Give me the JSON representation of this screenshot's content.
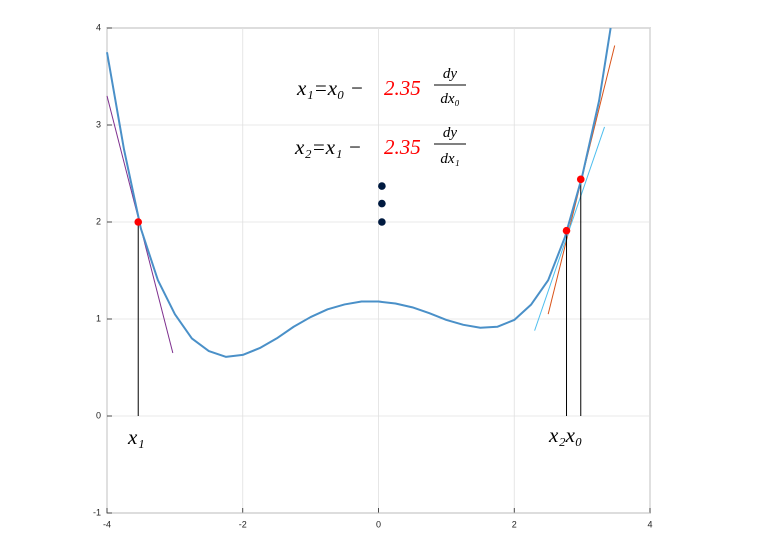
{
  "chart_data": {
    "type": "line",
    "xlim": [
      -4,
      4
    ],
    "ylim": [
      -1,
      4
    ],
    "xticks": [
      -4,
      -2,
      0,
      2,
      4
    ],
    "yticks": [
      -1,
      0,
      1,
      2,
      3,
      4
    ],
    "grid": true,
    "series": [
      {
        "color": "#4a90c8",
        "mode": "line",
        "x": [
          -4,
          -3.75,
          -3.5,
          -3.25,
          -3,
          -2.75,
          -2.5,
          -2.25,
          -2,
          -1.75,
          -1.5,
          -1.25,
          -1,
          -0.75,
          -0.5,
          -0.25,
          0,
          0.25,
          0.5,
          0.75,
          1,
          1.25,
          1.5,
          1.75,
          2,
          2.25,
          2.5,
          2.75,
          3,
          3.25,
          3.42
        ],
        "values": [
          3.75,
          2.75,
          1.93,
          1.4,
          1.05,
          0.8,
          0.67,
          0.61,
          0.63,
          0.7,
          0.8,
          0.92,
          1.02,
          1.1,
          1.15,
          1.18,
          1.18,
          1.16,
          1.12,
          1.06,
          0.99,
          0.94,
          0.91,
          0.92,
          0.99,
          1.15,
          1.4,
          1.85,
          2.47,
          3.25,
          4
        ]
      },
      {
        "color": "#7e2f8e",
        "mode": "line",
        "x": [
          -4,
          -3.03
        ],
        "values": [
          3.3,
          0.65
        ]
      },
      {
        "color": "#d95319",
        "mode": "line",
        "x": [
          2.5,
          3.48
        ],
        "values": [
          1.05,
          3.82
        ]
      },
      {
        "color": "#4dbeee",
        "mode": "line",
        "x": [
          2.3,
          3.33
        ],
        "values": [
          0.88,
          2.98
        ]
      },
      {
        "color": "#000000",
        "mode": "line",
        "x": [
          -3.54,
          -3.54
        ],
        "values": [
          0,
          2
        ]
      },
      {
        "color": "#000000",
        "mode": "line",
        "x": [
          2.77,
          2.77
        ],
        "values": [
          0,
          1.91
        ]
      },
      {
        "color": "#000000",
        "mode": "line",
        "x": [
          2.98,
          2.98
        ],
        "values": [
          0,
          2.44
        ]
      },
      {
        "color": "#ff0000",
        "mode": "markers",
        "x": [
          -3.54,
          2.77,
          2.98
        ],
        "values": [
          2,
          1.91,
          2.44
        ]
      },
      {
        "color": "#001a40",
        "mode": "markers",
        "x": [
          0.05,
          0.05,
          0.05
        ],
        "values": [
          2.37,
          2.19,
          2.0
        ]
      }
    ],
    "equations": [
      {
        "left": "x₁=x₀ −",
        "factor": "2.35",
        "numerator": "dy",
        "denominator": "dx₀"
      },
      {
        "left": "x₂=x₁ −",
        "factor": "2.35",
        "numerator": "dy",
        "denominator": "dx₁"
      }
    ],
    "point_labels": [
      "x₁",
      "x₂x₀"
    ]
  }
}
